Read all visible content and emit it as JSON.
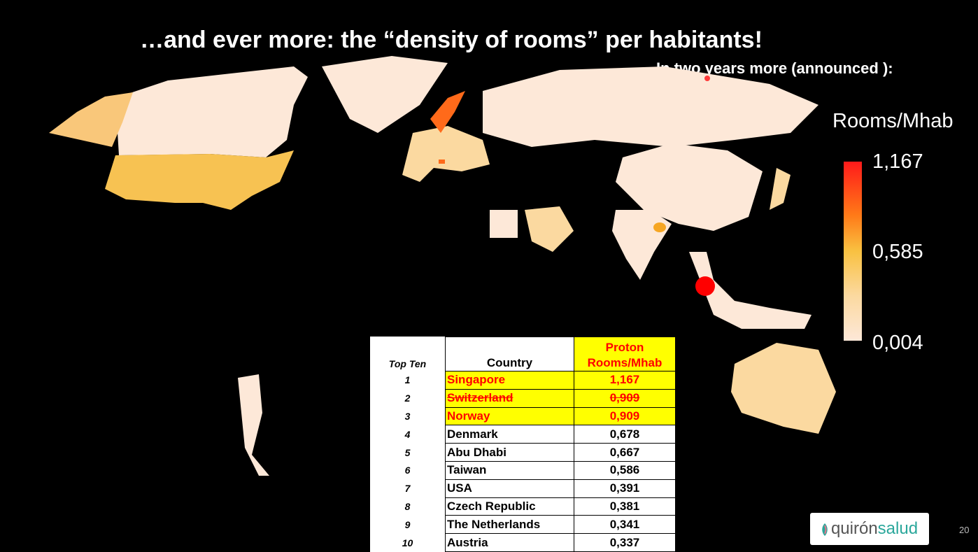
{
  "title": "…and ever more: the “density of  rooms” per habitants!",
  "subtitle": "In two years more  (announced ):",
  "legend": {
    "title": "Rooms/Mhab",
    "max": "1,167",
    "mid": "0,585",
    "min": "0,004",
    "colors": {
      "high": "#ff1a1a",
      "mid": "#f9c141",
      "low": "#fde8d8"
    }
  },
  "table": {
    "header": {
      "rank": "Top Ten",
      "country": "Country",
      "value_line1": "Proton",
      "value_line2": "Rooms/Mhab"
    },
    "rows": [
      {
        "rank": "1",
        "country": "Singapore",
        "value": "1,167",
        "highlight": true
      },
      {
        "rank": "2",
        "country": "Switzerland",
        "value": "0,909",
        "highlight": true,
        "struck": true
      },
      {
        "rank": "3",
        "country": "Norway",
        "value": "0,909",
        "highlight": true
      },
      {
        "rank": "4",
        "country": "Denmark",
        "value": "0,678"
      },
      {
        "rank": "5",
        "country": "Abu Dhabi",
        "value": "0,667"
      },
      {
        "rank": "6",
        "country": "Taiwan",
        "value": "0,586"
      },
      {
        "rank": "7",
        "country": "USA",
        "value": "0,391"
      },
      {
        "rank": "8",
        "country": "Czech  Republic",
        "value": "0,381"
      },
      {
        "rank": "9",
        "country": "The Netherlands",
        "value": "0,341"
      },
      {
        "rank": "10",
        "country": "Austria",
        "value": "0,337"
      }
    ]
  },
  "logo": {
    "text_dark": "quirón",
    "text_light": "salud"
  },
  "page_number": "20"
}
